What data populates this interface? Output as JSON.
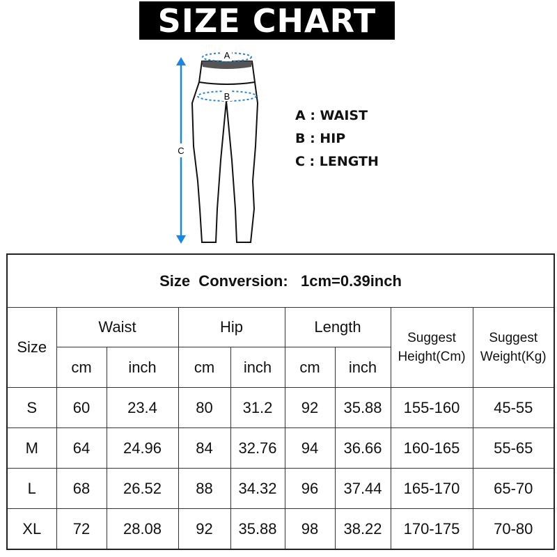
{
  "banner": {
    "title": "SIZE CHART"
  },
  "diagram": {
    "label_a": "A",
    "label_b": "B",
    "label_c": "C",
    "accent": "#1a86e0"
  },
  "legend": [
    "A : WAIST",
    "B : HIP",
    "C : LENGTH"
  ],
  "table": {
    "title": "Size  Conversion:   1cm=0.39inch",
    "headers": {
      "size": "Size",
      "waist": "Waist",
      "hip": "Hip",
      "length": "Length",
      "height": [
        "Suggest",
        "Height(Cm)"
      ],
      "weight": [
        "Suggest",
        "Weight(Kg)"
      ],
      "cm": "cm",
      "inch": "inch"
    },
    "rows": [
      [
        "S",
        "60",
        "23.4",
        "80",
        "31.2",
        "92",
        "35.88",
        "155-160",
        "45-55"
      ],
      [
        "M",
        "64",
        "24.96",
        "84",
        "32.76",
        "94",
        "36.66",
        "160-165",
        "55-65"
      ],
      [
        "L",
        "68",
        "26.52",
        "88",
        "34.32",
        "96",
        "37.44",
        "165-170",
        "65-70"
      ],
      [
        "XL",
        "72",
        "28.08",
        "92",
        "35.88",
        "98",
        "38.22",
        "170-175",
        "70-80"
      ]
    ]
  }
}
